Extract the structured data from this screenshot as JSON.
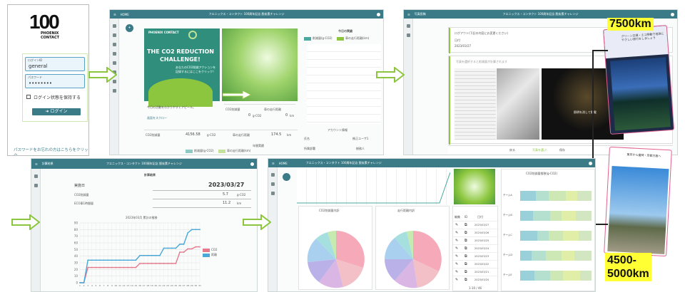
{
  "login": {
    "logo_number": "100",
    "logo_brand_line1": "PHOENIX",
    "logo_brand_line2": "CONTACT",
    "id_label": "ログインID",
    "id_value": "general",
    "pw_label": "パスワード",
    "pw_value": "••••••••",
    "remember_label": "ログイン状態を保持する",
    "login_button": "ログイン",
    "forgot_link": "パスワードをお忘れの方はこちらをクリック"
  },
  "home": {
    "topbar_home": "HOME",
    "topbar_title": "フエニックス・コンタクト 100周年記念 脱炭素チャレンジ",
    "banner_brand": "PHOENIX CONTACT",
    "banner_title_line1": "THE CO2 REDUCTION",
    "banner_title_line2": "CHALLENGE!",
    "banner_sub": "あなたのCO2削減アクションを記録するにはここをクリック！",
    "card_caption": "今日の活動をわかりやすくアピール。",
    "card_link": "画面をスクロー",
    "today_label": "今日の実績",
    "co2_small": "CO2削減量",
    "co2_small_val": "0",
    "co2_small_unit": "g-CO2",
    "km_small": "車の走行距離",
    "km_small_val": "0",
    "km_small_unit": "km",
    "annual_label": "年間実績",
    "annual_co2_label": "CO2削減量",
    "annual_co2_val": "4156.58",
    "annual_co2_unit": "g-CO2",
    "annual_km_label": "車の走行距離",
    "annual_km_val": "174.5",
    "annual_km_unit": "km",
    "chart_title": "今日の推移",
    "legend_co2": "削減量(g-CO2)",
    "legend_km": "車の走行距離(km)",
    "account_label": "アカウント情報",
    "name_label": "氏名",
    "name_val": "株正ユーザ1",
    "dept_label": "所属部署",
    "dept_val": "総務人",
    "footer_legend_co2": "削減量(g-CO2)",
    "footer_legend_km": "車の走行距離(km)"
  },
  "photo": {
    "topbar_title": "写真投稿",
    "header_title": "フエニックス・コンタクト 100周年記念 脱炭素チャレンジ",
    "notice": "ログアウト(下記の内容にお変更ください)",
    "field_label": "日付",
    "field_value": "2023/03/27",
    "hint": "写真を選択すると削減量が計算されます",
    "right_caption": "照明を消して節電",
    "bottom_btn1": "戻る",
    "bottom_btn2": "写真を選ぶ",
    "bottom_btn3": "保存",
    "dest_card1": "グリーン交通・エコ移動で地球にやさしい旅行をしましょう",
    "dest_card2": "東京から盛岡・京都方面へ"
  },
  "results": {
    "topbar_title": "フエニックス・コンタクト 100周年記念 脱炭素チャレンジ",
    "menu": "計算結果",
    "section_title": "計算結果",
    "date_label": "実施日",
    "date_val": "2023/03/27",
    "co2_label": "CO2削減量",
    "co2_val": "5.7",
    "co2_unit": "g-CO2",
    "km_label": "ECO車1時間量",
    "km_val": "11.2",
    "km_unit": "km",
    "chart_title": "2023年03月 累計の推移",
    "legend_co2": "CO2",
    "legend_km": "距離"
  },
  "summary": {
    "topbar_home": "HOME",
    "topbar_title": "フエニックス・コンタクト 100周年記念 脱炭素チャレンジ",
    "pie1_title": "CO2削減量内訳",
    "pie2_title": "走行距離内訳",
    "bar_title": "CO2削減量推移(g-CO2)",
    "bar_labels": [
      "チームA",
      "チームB",
      "チームC",
      "チームD",
      "チームE"
    ],
    "list_header_col1": "編集",
    "list_header_col2": "ID",
    "list_header_col3": "日付",
    "list_dates": [
      "2023/03/27",
      "2023/03/26",
      "2023/03/25",
      "2023/03/24",
      "2023/03/23",
      "2023/03/22",
      "2023/03/21",
      "2023/03/20"
    ],
    "pager": "1-10 / 46"
  },
  "callouts": {
    "top": "7500km",
    "bottom_line1": "4500-",
    "bottom_line2": "5000km"
  },
  "chart_data": {
    "type": "line",
    "title": "2023年03月 累計の推移",
    "x": [
      1,
      2,
      3,
      4,
      5,
      6,
      7,
      8,
      9,
      10,
      11,
      12,
      13,
      14,
      15,
      16,
      17,
      18,
      19,
      20,
      21,
      22,
      23,
      24,
      25,
      26,
      27,
      28,
      29,
      30,
      31
    ],
    "ylim": [
      0,
      90
    ],
    "yticks": [
      0,
      10,
      20,
      30,
      40,
      50,
      60,
      70,
      80,
      90
    ],
    "series": [
      {
        "name": "CO2",
        "color": "#e57a8c",
        "values": [
          0,
          0,
          23,
          23,
          23,
          23,
          23,
          23,
          23,
          23,
          23,
          23,
          23,
          23,
          23,
          29,
          29,
          29,
          29,
          29,
          29,
          29,
          29,
          29,
          29,
          46,
          46,
          51,
          51,
          54,
          54
        ]
      },
      {
        "name": "距離",
        "color": "#49a8d8",
        "values": [
          0,
          0,
          34,
          34,
          34,
          34,
          34,
          34,
          34,
          34,
          34,
          34,
          34,
          34,
          34,
          41,
          41,
          41,
          41,
          41,
          41,
          52,
          52,
          52,
          52,
          58,
          58,
          75,
          80,
          80,
          80
        ]
      }
    ]
  },
  "colors": {
    "teal": "#3b7b87",
    "accent_green": "#8cc63e",
    "arrow_green": "#8cc63e",
    "pink": "#e57a8c",
    "blue": "#49a8d8",
    "callout_yellow": "#ffff33"
  }
}
